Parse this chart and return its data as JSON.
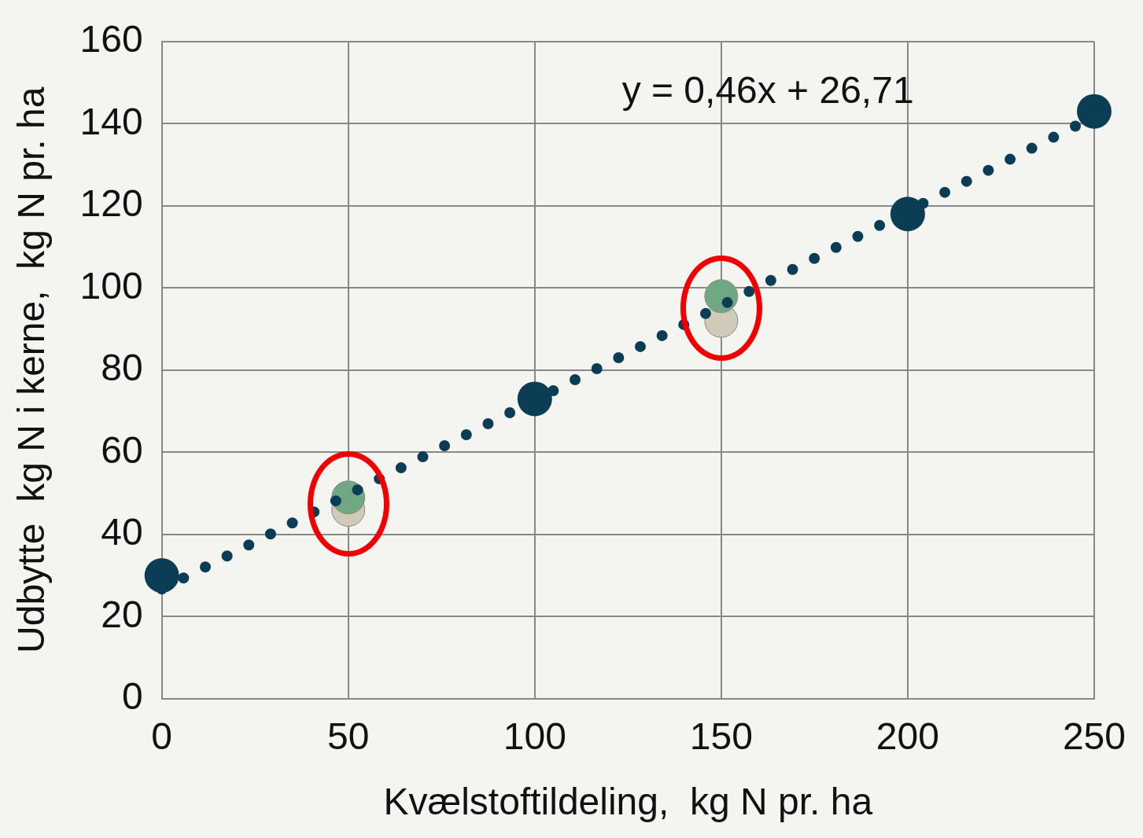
{
  "chart_data": {
    "type": "scatter",
    "xlabel": "Kvælstoftildeling,  kg N pr. ha",
    "ylabel": "Udbytte  kg N i kerne,  kg N pr. ha",
    "xlim": [
      0,
      250
    ],
    "xticks": [
      0,
      50,
      100,
      150,
      200,
      250
    ],
    "ylim": [
      0,
      160
    ],
    "yticks": [
      0,
      20,
      40,
      60,
      80,
      100,
      120,
      140,
      160
    ],
    "grid": true,
    "legend": false,
    "marker": "circle",
    "annotations": [
      "y = 0,46x + 26,71"
    ],
    "series": [
      {
        "color": "#cfcbb8",
        "x": [
          50,
          150
        ],
        "values": [
          46,
          92
        ]
      },
      {
        "color": "#6fa882",
        "x": [
          50,
          150
        ],
        "values": [
          49,
          98
        ]
      },
      {
        "color": "#0b3d55",
        "x": [
          0,
          100,
          200,
          250
        ],
        "values": [
          30,
          73,
          118,
          143
        ]
      },
      {
        "type": "line",
        "color": "#0b3d55",
        "line_style": "dotted",
        "marker": "none",
        "x": [
          0,
          250
        ],
        "values": [
          26.7,
          141.7
        ]
      }
    ]
  }
}
